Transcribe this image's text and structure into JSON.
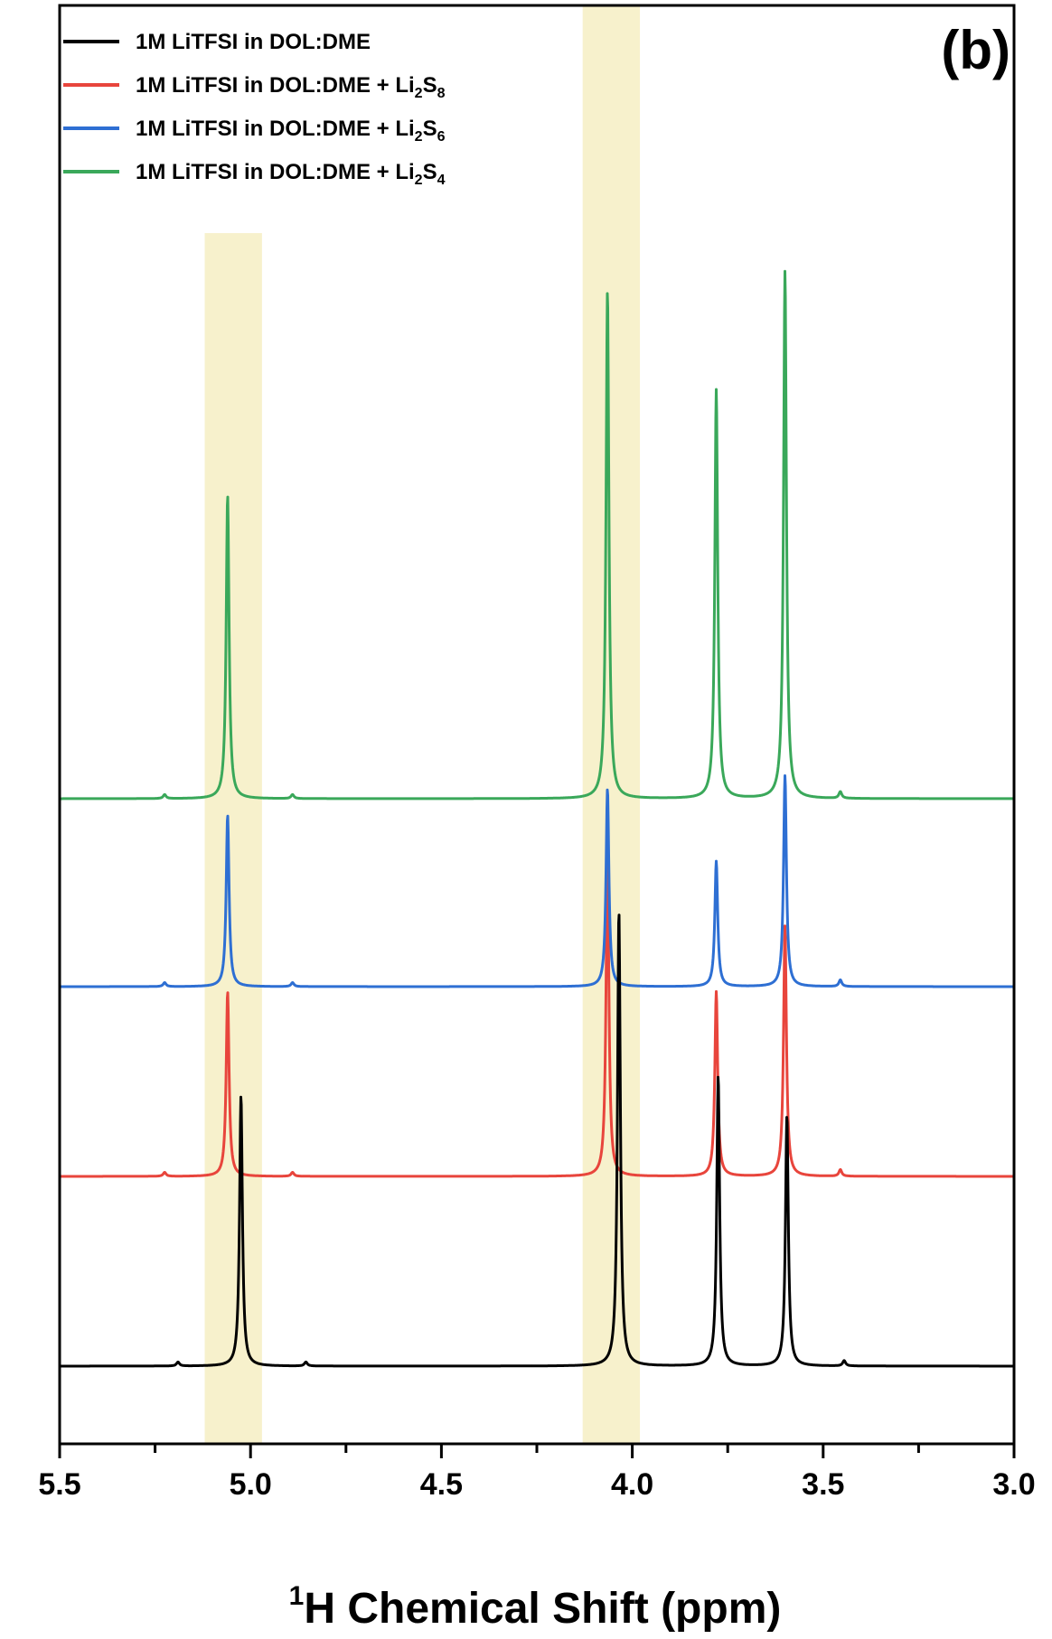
{
  "chart_data": {
    "type": "line",
    "panel_label": "(b)",
    "xlabel": {
      "superscript": "1",
      "text": "H Chemical Shift (ppm)"
    },
    "xlim": [
      5.5,
      3.0
    ],
    "x_reversed": true,
    "x_ticks": [
      "5.5",
      "5.0",
      "4.5",
      "4.0",
      "3.5",
      "3.0"
    ],
    "y_ticks_shown": false,
    "highlight_bands": [
      {
        "from": 5.12,
        "to": 4.97,
        "color": "#f7f1cc"
      },
      {
        "from": 4.13,
        "to": 3.98,
        "color": "#f7f1cc"
      }
    ],
    "legend_position": "top-left",
    "series": [
      {
        "name": "1M LiTFSI in DOL:DME",
        "label": {
          "text": "1M LiTFSI in DOL:DME",
          "sub1": "",
          "mid": "",
          "sub2": ""
        },
        "color": "#000000",
        "baseline": 0,
        "peaks": [
          {
            "x": 5.025,
            "height": 2.05
          },
          {
            "x": 4.035,
            "height": 3.45
          },
          {
            "x": 3.775,
            "height": 2.2
          },
          {
            "x": 3.595,
            "height": 1.9
          },
          {
            "x": 5.19,
            "height": 0.03
          },
          {
            "x": 4.855,
            "height": 0.03
          },
          {
            "x": 3.445,
            "height": 0.04
          }
        ]
      },
      {
        "name": "1M LiTFSI in DOL:DME + Li2S8",
        "label": {
          "text": "1M LiTFSI in DOL:DME + Li",
          "sub1": "2",
          "mid": "S",
          "sub2": "8"
        },
        "color": "#e8453c",
        "baseline": 1,
        "peaks": [
          {
            "x": 5.06,
            "height": 1.4
          },
          {
            "x": 4.065,
            "height": 2.45
          },
          {
            "x": 3.78,
            "height": 1.4
          },
          {
            "x": 3.6,
            "height": 1.9
          },
          {
            "x": 5.225,
            "height": 0.03
          },
          {
            "x": 4.89,
            "height": 0.03
          },
          {
            "x": 3.455,
            "height": 0.05
          }
        ]
      },
      {
        "name": "1M LiTFSI in DOL:DME + Li2S6",
        "label": {
          "text": "1M LiTFSI in DOL:DME + Li",
          "sub1": "2",
          "mid": "S",
          "sub2": "6"
        },
        "color": "#2e6fd3",
        "baseline": 2,
        "peaks": [
          {
            "x": 5.06,
            "height": 1.3
          },
          {
            "x": 4.065,
            "height": 1.5
          },
          {
            "x": 3.78,
            "height": 0.95
          },
          {
            "x": 3.6,
            "height": 1.6
          },
          {
            "x": 5.225,
            "height": 0.03
          },
          {
            "x": 4.89,
            "height": 0.03
          },
          {
            "x": 3.455,
            "height": 0.05
          }
        ]
      },
      {
        "name": "1M LiTFSI in DOL:DME + Li2S4",
        "label": {
          "text": "1M LiTFSI in DOL:DME + Li",
          "sub1": "2",
          "mid": "S",
          "sub2": "4"
        },
        "color": "#3aa85a",
        "baseline": 3,
        "peaks": [
          {
            "x": 5.06,
            "height": 2.3
          },
          {
            "x": 4.065,
            "height": 3.85
          },
          {
            "x": 3.78,
            "height": 3.1
          },
          {
            "x": 3.6,
            "height": 4.0
          },
          {
            "x": 5.225,
            "height": 0.03
          },
          {
            "x": 4.89,
            "height": 0.03
          },
          {
            "x": 3.455,
            "height": 0.05
          }
        ]
      }
    ]
  }
}
